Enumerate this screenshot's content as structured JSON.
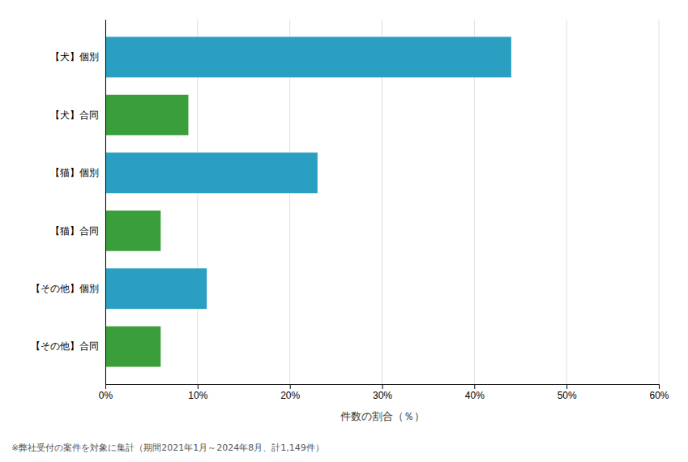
{
  "chart_data": {
    "type": "bar",
    "orientation": "horizontal",
    "categories": [
      "【その他】合同",
      "【その他】個別",
      "【猫】合同",
      "【猫】個別",
      "【犬】合同",
      "【犬】個別"
    ],
    "values": [
      6.0,
      11.0,
      6.0,
      23.0,
      9.0,
      44.0
    ],
    "colors": [
      "#3a9e3a",
      "#2b9fc2",
      "#3a9e3a",
      "#2b9fc2",
      "#3a9e3a",
      "#2b9fc2"
    ],
    "xlabel": "件数の割合（％）",
    "xlim": [
      0,
      60
    ],
    "xticks": [
      {
        "value": 0,
        "label": "0%"
      },
      {
        "value": 10,
        "label": "10%"
      },
      {
        "value": 20,
        "label": "20%"
      },
      {
        "value": 30,
        "label": "30%"
      },
      {
        "value": 40,
        "label": "40%"
      },
      {
        "value": 50,
        "label": "50%"
      },
      {
        "value": 60,
        "label": "60%"
      }
    ],
    "grid": true,
    "footnote": "※弊社受付の案件を対象に集計（期間2021年1月～2024年8月、計1,149件）"
  }
}
